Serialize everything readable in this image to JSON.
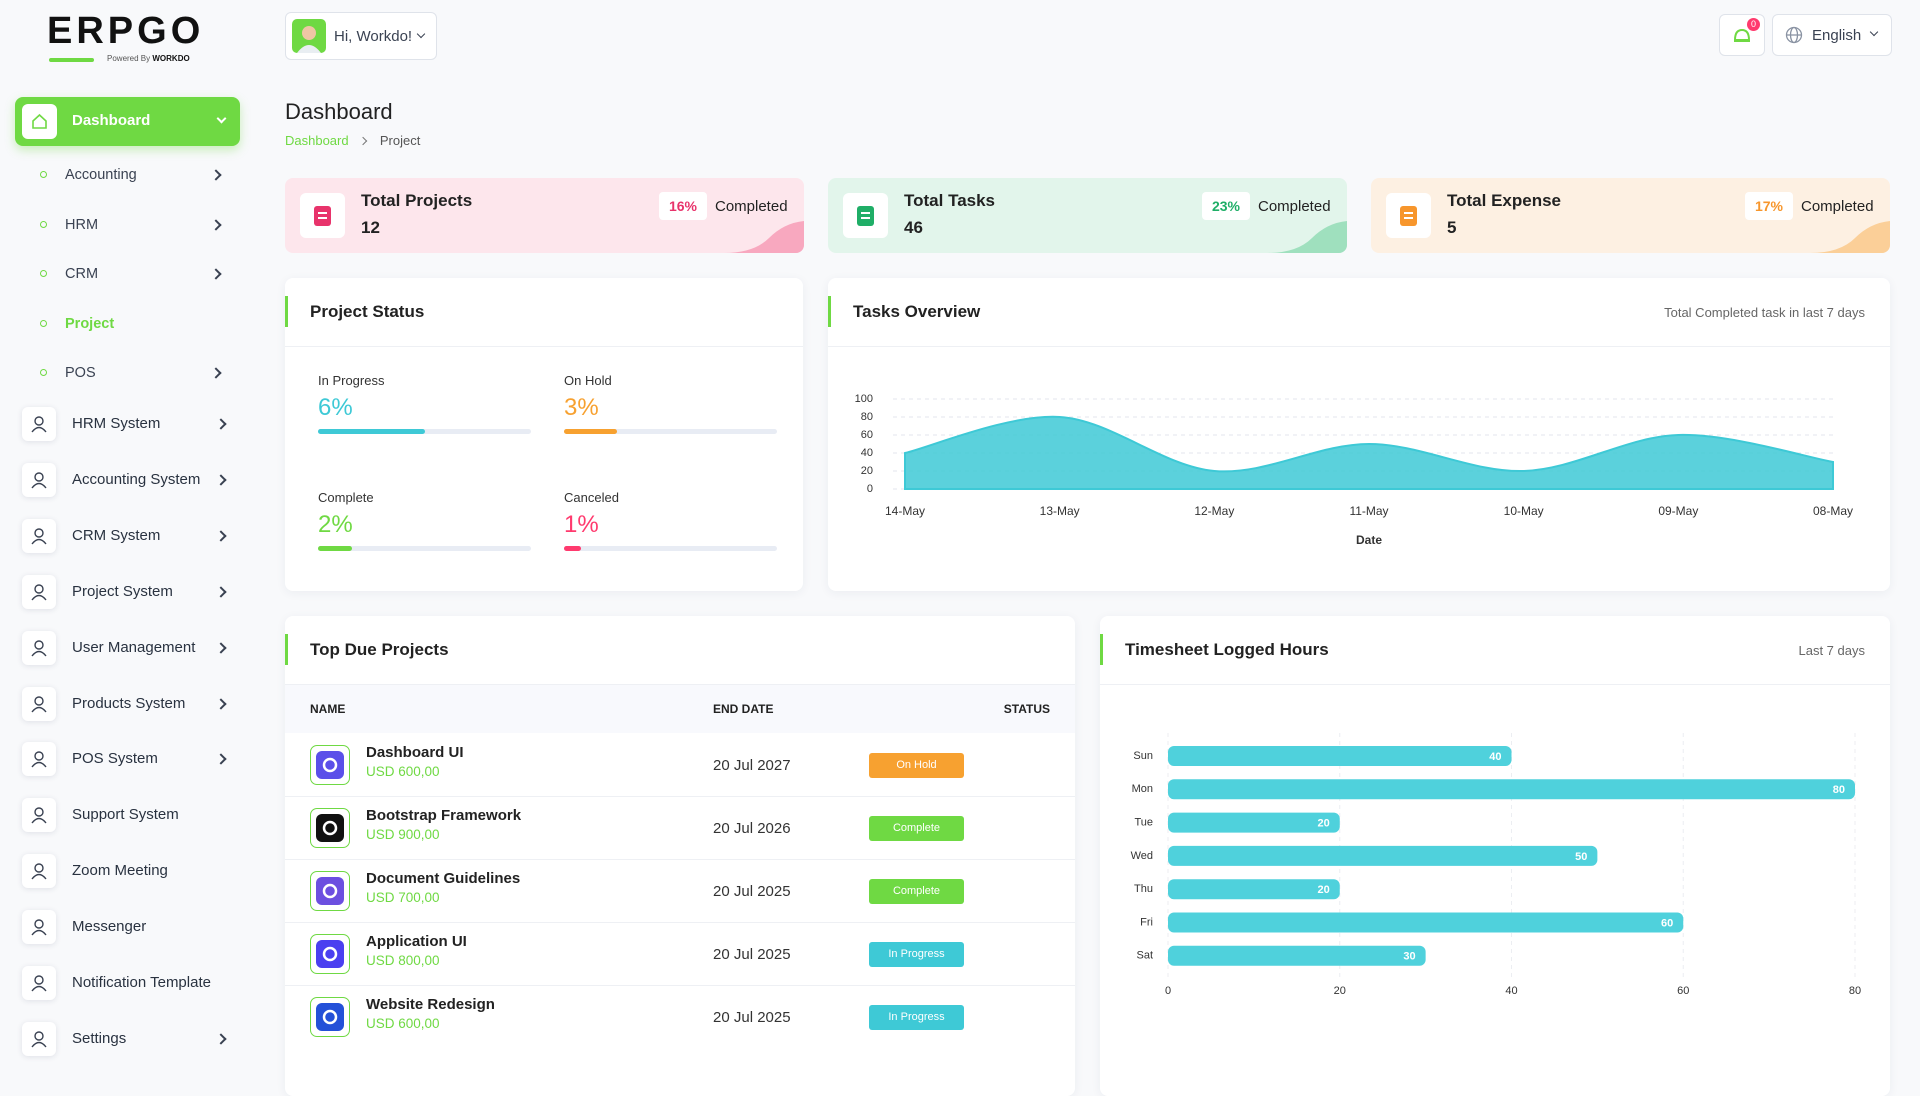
{
  "logo": {
    "name": "ERPGO",
    "tagline": "Powered By",
    "brand": "WORKDO"
  },
  "header": {
    "greeting": "Hi, Workdo!",
    "notifications": "0",
    "language": "English"
  },
  "sidebar": [
    {
      "label": "Dashboard",
      "active": true,
      "expanded": true,
      "children": [
        {
          "label": "Accounting",
          "arrow": true
        },
        {
          "label": "HRM",
          "arrow": true
        },
        {
          "label": "CRM",
          "arrow": true
        },
        {
          "label": "Project",
          "arrow": false,
          "active": true
        },
        {
          "label": "POS",
          "arrow": true
        }
      ]
    },
    {
      "label": "HRM System",
      "arrow": true
    },
    {
      "label": "Accounting System",
      "arrow": true
    },
    {
      "label": "CRM System",
      "arrow": true
    },
    {
      "label": "Project System",
      "arrow": true
    },
    {
      "label": "User Management",
      "arrow": true
    },
    {
      "label": "Products System",
      "arrow": true
    },
    {
      "label": "POS System",
      "arrow": true
    },
    {
      "label": "Support System",
      "arrow": false
    },
    {
      "label": "Zoom Meeting",
      "arrow": false
    },
    {
      "label": "Messenger",
      "arrow": false
    },
    {
      "label": "Notification Template",
      "arrow": false
    },
    {
      "label": "Settings",
      "arrow": true
    }
  ],
  "page": {
    "title": "Dashboard",
    "breadcrumb": [
      "Dashboard",
      "Project"
    ]
  },
  "stats": [
    {
      "title": "Total Projects",
      "value": "12",
      "percent": "16%",
      "status": "Completed",
      "color": "#e8336b",
      "bg": "#fde6ec",
      "accent": "#f8a8bf"
    },
    {
      "title": "Total Tasks",
      "value": "46",
      "percent": "23%",
      "status": "Completed",
      "color": "#1fae67",
      "bg": "#e2f5eb",
      "accent": "#9fe0be"
    },
    {
      "title": "Total Expense",
      "value": "5",
      "percent": "17%",
      "status": "Completed",
      "color": "#f7962c",
      "bg": "#fdf0e2",
      "accent": "#fbcf98"
    }
  ],
  "project_status": {
    "title": "Project Status",
    "items": [
      {
        "label": "In Progress",
        "value": "6%",
        "bar": 50,
        "color": "#3ec9d6"
      },
      {
        "label": "On Hold",
        "value": "3%",
        "bar": 25,
        "color": "#f7a130"
      },
      {
        "label": "Complete",
        "value": "2%",
        "bar": 16,
        "color": "#6fd943"
      },
      {
        "label": "Canceled",
        "value": "1%",
        "bar": 8,
        "color": "#ff3a6e"
      }
    ]
  },
  "top_due_projects": {
    "title": "Top Due Projects",
    "columns": [
      "NAME",
      "END DATE",
      "STATUS"
    ],
    "rows": [
      {
        "name": "Dashboard UI",
        "amount": "USD 600,00",
        "end_date": "20 Jul 2027",
        "status": "On Hold",
        "status_color": "#f7a130",
        "icon_color": "#5b4fe9"
      },
      {
        "name": "Bootstrap Framework",
        "amount": "USD 900,00",
        "end_date": "20 Jul 2026",
        "status": "Complete",
        "status_color": "#6fd943",
        "icon_color": "#111111"
      },
      {
        "name": "Document Guidelines",
        "amount": "USD 700,00",
        "end_date": "20 Jul 2025",
        "status": "Complete",
        "status_color": "#6fd943",
        "icon_color": "#6c4fe0"
      },
      {
        "name": "Application UI",
        "amount": "USD 800,00",
        "end_date": "20 Jul 2025",
        "status": "In Progress",
        "status_color": "#3ec9d6",
        "icon_color": "#4b3ff0"
      },
      {
        "name": "Website Redesign",
        "amount": "USD 600,00",
        "end_date": "20 Jul 2025",
        "status": "In Progress",
        "status_color": "#3ec9d6",
        "icon_color": "#2450d8"
      }
    ]
  },
  "chart_data": [
    {
      "type": "area",
      "title": "Tasks Overview",
      "subtitle": "Total Completed task in last 7 days",
      "categories": [
        "14-May",
        "13-May",
        "12-May",
        "11-May",
        "10-May",
        "09-May",
        "08-May"
      ],
      "values": [
        40,
        80,
        20,
        50,
        20,
        60,
        30
      ],
      "color": "#3ec9d6",
      "ylim": [
        0,
        100
      ],
      "yticks": [
        0,
        20,
        40,
        60,
        80,
        100
      ],
      "xlabel": "Date",
      "grid": true
    },
    {
      "type": "bar",
      "orientation": "horizontal",
      "title": "Timesheet Logged Hours",
      "subtitle": "Last 7 days",
      "categories": [
        "Sun",
        "Mon",
        "Tue",
        "Wed",
        "Thu",
        "Fri",
        "Sat"
      ],
      "values": [
        40,
        80,
        20,
        50,
        20,
        60,
        30
      ],
      "color": "#4fd1dc",
      "xlim": [
        0,
        80
      ],
      "xticks": [
        0,
        20,
        40,
        60,
        80
      ],
      "grid": true
    }
  ]
}
